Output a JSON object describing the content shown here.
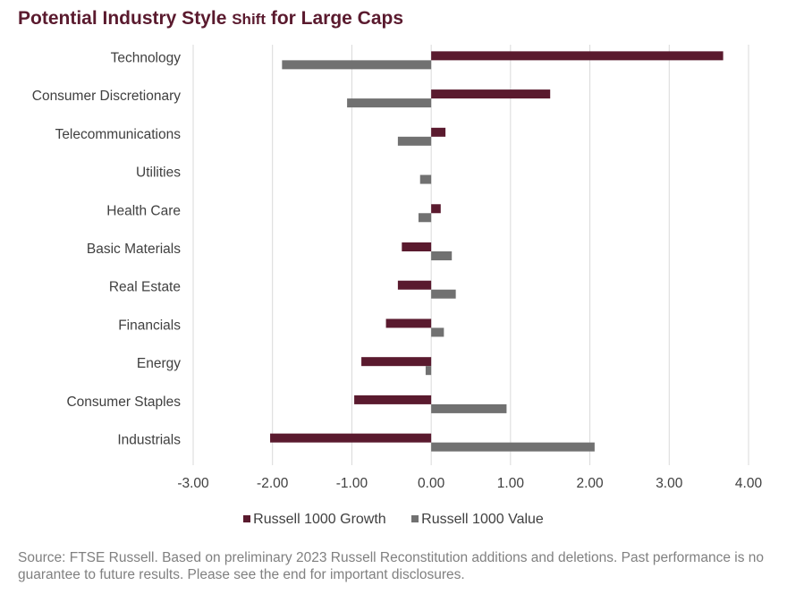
{
  "title_main": "Potential Industry Style ",
  "title_small": "Shift",
  "title_end": " for Large Caps",
  "colors": {
    "growth": "#5a1a2e",
    "value": "#717171",
    "grid": "#d9d9d9",
    "text": "#404040"
  },
  "chart_data": {
    "type": "bar",
    "orientation": "horizontal",
    "title": "Potential Industry Style Shift for Large Caps",
    "categories": [
      "Technology",
      "Consumer Discretionary",
      "Telecommunications",
      "Utilities",
      "Health Care",
      "Basic Materials",
      "Real Estate",
      "Financials",
      "Energy",
      "Consumer Staples",
      "Industrials"
    ],
    "series": [
      {
        "name": "Russell 1000 Growth",
        "values": [
          3.68,
          1.5,
          0.18,
          0.0,
          0.12,
          -0.37,
          -0.42,
          -0.57,
          -0.88,
          -0.97,
          -2.03
        ]
      },
      {
        "name": "Russell 1000 Value",
        "values": [
          -1.88,
          -1.06,
          -0.42,
          -0.14,
          -0.16,
          0.26,
          0.31,
          0.16,
          -0.07,
          0.95,
          2.06
        ]
      }
    ],
    "xlim": [
      -3.0,
      4.0
    ],
    "ticks": [
      "-3.00",
      "-2.00",
      "-1.00",
      "0.00",
      "1.00",
      "2.00",
      "3.00",
      "4.00"
    ],
    "tick_values": [
      -3,
      -2,
      -1,
      0,
      1,
      2,
      3,
      4
    ],
    "grid": true,
    "legend_position": "bottom"
  },
  "legend": {
    "growth": "Russell 1000 Growth",
    "value": "Russell 1000 Value"
  },
  "source": "Source: FTSE Russell. Based on preliminary 2023 Russell Reconstitution additions and deletions. Past performance is no guarantee to future results. Please see the end for important disclosures."
}
